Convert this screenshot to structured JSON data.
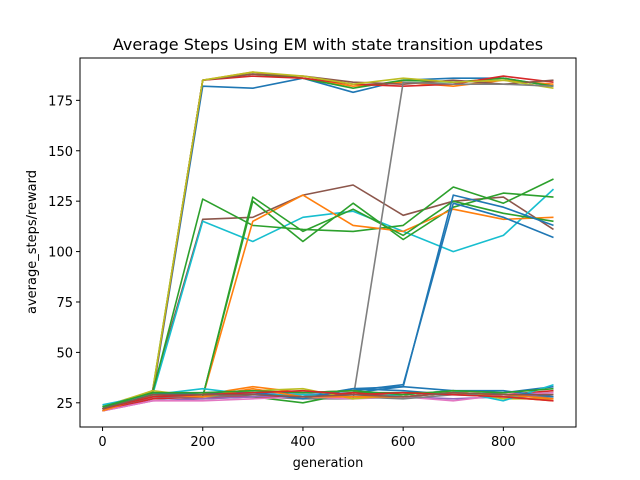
{
  "chart_data": {
    "type": "line",
    "title": "Average Steps Using EM with state transition updates",
    "xlabel": "generation",
    "ylabel": "average_steps/reward",
    "xlim": [
      -45,
      945
    ],
    "ylim": [
      13,
      196
    ],
    "xticks": [
      0,
      200,
      400,
      600,
      800
    ],
    "yticks": [
      25,
      50,
      75,
      100,
      125,
      150,
      175
    ],
    "grid": false,
    "legend": "none",
    "x": [
      0,
      100,
      200,
      300,
      400,
      500,
      600,
      700,
      800,
      900
    ],
    "series": [
      {
        "color": "#1f77b4",
        "values": [
          21,
          29,
          182,
          181,
          186,
          179,
          185,
          186,
          186,
          182
        ]
      },
      {
        "color": "#ff7f0e",
        "values": [
          22,
          30,
          185,
          189,
          186,
          182,
          184,
          182,
          185,
          183
        ]
      },
      {
        "color": "#2ca02c",
        "values": [
          22,
          31,
          185,
          188,
          186,
          181,
          185,
          184,
          186,
          182
        ]
      },
      {
        "color": "#d62728",
        "values": [
          21,
          30,
          185,
          187,
          186,
          183,
          182,
          183,
          187,
          184
        ]
      },
      {
        "color": "#8c564b",
        "values": [
          22,
          30,
          185,
          188,
          187,
          184,
          183,
          185,
          183,
          185
        ]
      },
      {
        "color": "#bcbd22",
        "values": [
          21,
          31,
          185,
          189,
          187,
          183,
          186,
          184,
          185,
          181
        ]
      },
      {
        "color": "#8c564b",
        "values": [
          22,
          31,
          116,
          117,
          128,
          133,
          118,
          125,
          127,
          111
        ]
      },
      {
        "color": "#17becf",
        "values": [
          22,
          29,
          115,
          105,
          117,
          120,
          110,
          100,
          108,
          131
        ]
      },
      {
        "color": "#2ca02c",
        "values": [
          23,
          30,
          126,
          113,
          111,
          110,
          113,
          132,
          124,
          136
        ]
      },
      {
        "color": "#2ca02c",
        "values": [
          22,
          29,
          28,
          125,
          105,
          124,
          106,
          122,
          129,
          127
        ]
      },
      {
        "color": "#ff7f0e",
        "values": [
          22,
          30,
          28,
          115,
          128,
          113,
          110,
          121,
          116,
          117
        ]
      },
      {
        "color": "#2ca02c",
        "values": [
          22,
          29,
          28,
          127,
          110,
          121,
          108,
          125,
          119,
          115
        ]
      },
      {
        "color": "#1f77b4",
        "values": [
          23,
          29,
          28,
          29,
          29,
          30,
          33,
          128,
          122,
          113
        ]
      },
      {
        "color": "#1f77b4",
        "values": [
          22,
          29,
          28,
          30,
          30,
          31,
          34,
          124,
          117,
          107
        ]
      },
      {
        "color": "#7f7f7f",
        "values": [
          21,
          28,
          27,
          28,
          27,
          27,
          184,
          183,
          183,
          182
        ]
      },
      {
        "color": "#1f77b4",
        "values": [
          21,
          27,
          28,
          29,
          28,
          32,
          31,
          29,
          30,
          33
        ]
      },
      {
        "color": "#ff7f0e",
        "values": [
          22,
          28,
          29,
          33,
          30,
          31,
          28,
          30,
          28,
          26
        ]
      },
      {
        "color": "#2ca02c",
        "values": [
          22,
          30,
          29,
          28,
          25,
          30,
          30,
          30,
          29,
          30
        ]
      },
      {
        "color": "#d62728",
        "values": [
          21,
          27,
          28,
          28,
          28,
          30,
          28,
          30,
          29,
          31
        ]
      },
      {
        "color": "#9467bd",
        "values": [
          21,
          26,
          27,
          28,
          29,
          28,
          28,
          27,
          28,
          29
        ]
      },
      {
        "color": "#e377c2",
        "values": [
          21,
          26,
          26,
          27,
          28,
          27,
          28,
          26,
          29,
          30
        ]
      },
      {
        "color": "#7f7f7f",
        "values": [
          22,
          28,
          28,
          29,
          29,
          28,
          27,
          29,
          28,
          28
        ]
      },
      {
        "color": "#bcbd22",
        "values": [
          23,
          31,
          28,
          31,
          32,
          27,
          29,
          31,
          27,
          27
        ]
      },
      {
        "color": "#17becf",
        "values": [
          24,
          29,
          32,
          29,
          29,
          28,
          29,
          31,
          26,
          34
        ]
      },
      {
        "color": "#1f77b4",
        "values": [
          22,
          29,
          30,
          30,
          27,
          32,
          33,
          31,
          31,
          28
        ]
      },
      {
        "color": "#ff7f0e",
        "values": [
          21,
          29,
          28,
          32,
          28,
          28,
          28,
          30,
          29,
          27
        ]
      },
      {
        "color": "#2ca02c",
        "values": [
          23,
          30,
          30,
          31,
          30,
          31,
          29,
          31,
          30,
          32
        ]
      },
      {
        "color": "#d62728",
        "values": [
          22,
          28,
          29,
          30,
          31,
          29,
          30,
          29,
          28,
          26
        ]
      },
      {
        "color": "#8c564b",
        "values": [
          22,
          29,
          29,
          29,
          28,
          29,
          28,
          30,
          29,
          29
        ]
      }
    ]
  }
}
